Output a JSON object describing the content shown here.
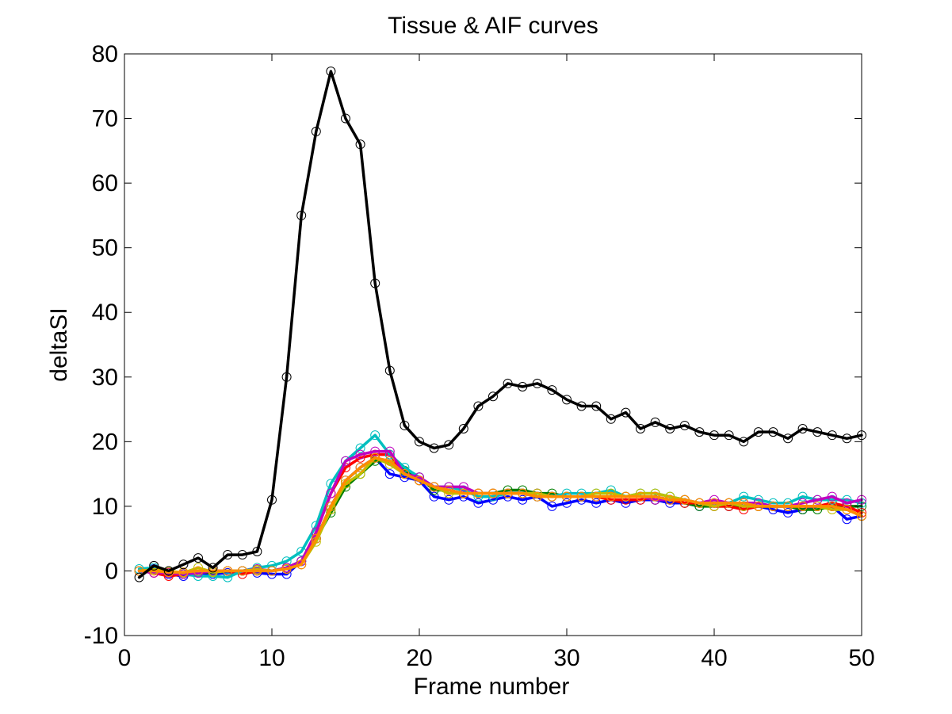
{
  "chart_data": {
    "type": "line",
    "title": "Tissue & AIF curves",
    "xlabel": "Frame number",
    "ylabel": "deltaSI",
    "xlim": [
      0,
      50
    ],
    "ylim": [
      -10,
      80
    ],
    "xticks": [
      0,
      10,
      20,
      30,
      40,
      50
    ],
    "yticks": [
      -10,
      0,
      10,
      20,
      30,
      40,
      50,
      60,
      70,
      80
    ],
    "grid": false,
    "legend": "none",
    "marker": "circle",
    "series": [
      {
        "color": "#0000ff",
        "x": [
          1,
          2,
          3,
          4,
          5,
          6,
          7,
          8,
          9,
          10,
          11,
          12,
          13,
          14,
          15,
          16,
          17,
          18,
          19,
          20,
          21,
          22,
          23,
          24,
          25,
          26,
          27,
          28,
          29,
          30,
          31,
          32,
          33,
          34,
          35,
          36,
          37,
          38,
          39,
          40,
          41,
          42,
          43,
          44,
          45,
          46,
          47,
          48,
          49,
          50
        ],
        "y": [
          0,
          0.3,
          -0.5,
          -0.8,
          -0.3,
          -0.5,
          -0.3,
          0,
          -0.3,
          -0.5,
          -0.5,
          1.5,
          5,
          10,
          14,
          16,
          17.5,
          15,
          14.5,
          14,
          11.5,
          11,
          11.5,
          10.5,
          11,
          11.5,
          11,
          11.5,
          10,
          10.5,
          11,
          10.5,
          11,
          10.5,
          11,
          11,
          10.5,
          10.5,
          10,
          10.5,
          10,
          10.5,
          10,
          9.5,
          9,
          9.5,
          10,
          10,
          8,
          8.5
        ]
      },
      {
        "color": "#007f00",
        "x": [
          1,
          2,
          3,
          4,
          5,
          6,
          7,
          8,
          9,
          10,
          11,
          12,
          13,
          14,
          15,
          16,
          17,
          18,
          19,
          20,
          21,
          22,
          23,
          24,
          25,
          26,
          27,
          28,
          29,
          30,
          31,
          32,
          33,
          34,
          35,
          36,
          37,
          38,
          39,
          40,
          41,
          42,
          43,
          44,
          45,
          46,
          47,
          48,
          49,
          50
        ],
        "y": [
          0,
          0.2,
          -0.3,
          -0.5,
          -0.2,
          -0.2,
          0,
          0,
          0.2,
          0,
          0.5,
          1.5,
          5,
          9,
          13,
          15,
          17,
          17,
          15.5,
          14.5,
          12.5,
          12.5,
          12,
          12,
          12,
          12.5,
          12.5,
          12,
          12,
          11.5,
          11.5,
          11.5,
          11.5,
          11.5,
          11.5,
          11,
          11,
          10.5,
          10,
          10,
          10,
          10,
          10,
          10,
          10,
          9.5,
          9.5,
          10,
          10,
          10
        ]
      },
      {
        "color": "#ff0000",
        "x": [
          1,
          2,
          3,
          4,
          5,
          6,
          7,
          8,
          9,
          10,
          11,
          12,
          13,
          14,
          15,
          16,
          17,
          18,
          19,
          20,
          21,
          22,
          23,
          24,
          25,
          26,
          27,
          28,
          29,
          30,
          31,
          32,
          33,
          34,
          35,
          36,
          37,
          38,
          39,
          40,
          41,
          42,
          43,
          44,
          45,
          46,
          47,
          48,
          49,
          50
        ],
        "y": [
          0,
          -0.3,
          -0.8,
          -0.5,
          -0.3,
          0,
          0,
          -0.5,
          0,
          0,
          0.5,
          1,
          6,
          12,
          16,
          17.5,
          18,
          18,
          15,
          14,
          13,
          12.5,
          12,
          12,
          12,
          12,
          12,
          11.5,
          11.5,
          11.5,
          11.5,
          11.5,
          11,
          11,
          11,
          11.5,
          11,
          10.5,
          10.5,
          10,
          10,
          9.5,
          10,
          10,
          10,
          10,
          10,
          10.5,
          10,
          9
        ]
      },
      {
        "color": "#00bfbf",
        "x": [
          1,
          2,
          3,
          4,
          5,
          6,
          7,
          8,
          9,
          10,
          11,
          12,
          13,
          14,
          15,
          16,
          17,
          18,
          19,
          20,
          21,
          22,
          23,
          24,
          25,
          26,
          27,
          28,
          29,
          30,
          31,
          32,
          33,
          34,
          35,
          36,
          37,
          38,
          39,
          40,
          41,
          42,
          43,
          44,
          45,
          46,
          47,
          48,
          49,
          50
        ],
        "y": [
          0.3,
          0.5,
          0,
          -0.5,
          -0.8,
          -0.8,
          -1,
          0,
          0.5,
          0.8,
          1.5,
          3,
          7,
          13.5,
          17,
          19,
          21,
          18,
          16,
          14.5,
          13,
          13,
          12.5,
          11.5,
          11.5,
          12,
          12,
          11.5,
          11.5,
          12,
          12,
          12,
          12.5,
          11.5,
          12,
          12,
          11.5,
          11,
          10.5,
          10.5,
          10.5,
          11.5,
          11,
          10.5,
          10.5,
          11.5,
          11,
          11,
          11,
          10.5
        ]
      },
      {
        "color": "#bf00bf",
        "x": [
          1,
          2,
          3,
          4,
          5,
          6,
          7,
          8,
          9,
          10,
          11,
          12,
          13,
          14,
          15,
          16,
          17,
          18,
          19,
          20,
          21,
          22,
          23,
          24,
          25,
          26,
          27,
          28,
          29,
          30,
          31,
          32,
          33,
          34,
          35,
          36,
          37,
          38,
          39,
          40,
          41,
          42,
          43,
          44,
          45,
          46,
          47,
          48,
          49,
          50
        ],
        "y": [
          0,
          -0.3,
          -0.3,
          -0.5,
          -0.3,
          0,
          0,
          0,
          0.3,
          0,
          0.5,
          1.5,
          6,
          12,
          17,
          18,
          18.5,
          18.5,
          15,
          14.5,
          13,
          13,
          13,
          12,
          12,
          12,
          12,
          12,
          11.5,
          11.5,
          11.5,
          11.5,
          11.5,
          11.5,
          11.5,
          11,
          11,
          11,
          10.5,
          11,
          10.5,
          10.5,
          10.5,
          10,
          10,
          10.5,
          11,
          11.5,
          10.5,
          11
        ]
      },
      {
        "color": "#bfbf00",
        "x": [
          1,
          2,
          3,
          4,
          5,
          6,
          7,
          8,
          9,
          10,
          11,
          12,
          13,
          14,
          15,
          16,
          17,
          18,
          19,
          20,
          21,
          22,
          23,
          24,
          25,
          26,
          27,
          28,
          29,
          30,
          31,
          32,
          33,
          34,
          35,
          36,
          37,
          38,
          39,
          40,
          41,
          42,
          43,
          44,
          45,
          46,
          47,
          48,
          49,
          50
        ],
        "y": [
          0,
          0.2,
          0,
          -0.3,
          0.5,
          -0.2,
          0,
          0,
          0.2,
          0,
          0.3,
          1,
          4.5,
          9.5,
          13.5,
          15,
          17.5,
          16.5,
          15,
          14,
          13,
          12,
          12,
          12,
          12,
          12,
          12,
          12,
          11.5,
          11.5,
          11.5,
          12,
          12,
          11.5,
          12,
          12,
          11.5,
          11,
          10.5,
          10,
          10.5,
          10,
          10,
          10,
          10,
          10,
          10,
          9.5,
          9.5,
          8.5
        ]
      },
      {
        "color": "#ff8c00",
        "x": [
          1,
          2,
          3,
          4,
          5,
          6,
          7,
          8,
          9,
          10,
          11,
          12,
          13,
          14,
          15,
          16,
          17,
          18,
          19,
          20,
          21,
          22,
          23,
          24,
          25,
          26,
          27,
          28,
          29,
          30,
          31,
          32,
          33,
          34,
          35,
          36,
          37,
          38,
          39,
          40,
          41,
          42,
          43,
          44,
          45,
          46,
          47,
          48,
          49,
          50
        ],
        "y": [
          0,
          0,
          -0.2,
          -0.2,
          0,
          0,
          0,
          0,
          0,
          0,
          0.3,
          1,
          5,
          10,
          14,
          16,
          17.5,
          17,
          15,
          14,
          13,
          12.5,
          12,
          12,
          12,
          12,
          12,
          11.5,
          11.5,
          11.5,
          11.5,
          11.5,
          11.5,
          11.5,
          11.5,
          11.5,
          11,
          11,
          10.5,
          10.5,
          10.5,
          10.5,
          10,
          10,
          10,
          10,
          10,
          10,
          9.5,
          8.5
        ]
      },
      {
        "color": "#000000",
        "x": [
          1,
          2,
          3,
          4,
          5,
          6,
          7,
          8,
          9,
          10,
          11,
          12,
          13,
          14,
          15,
          16,
          17,
          18,
          19,
          20,
          21,
          22,
          23,
          24,
          25,
          26,
          27,
          28,
          29,
          30,
          31,
          32,
          33,
          34,
          35,
          36,
          37,
          38,
          39,
          40,
          41,
          42,
          43,
          44,
          45,
          46,
          47,
          48,
          49,
          50
        ],
        "y": [
          -1,
          0.8,
          0,
          1,
          2,
          0.5,
          2.5,
          2.5,
          3,
          11,
          30,
          55,
          68,
          77.3,
          70,
          66,
          44.5,
          31,
          22.5,
          20,
          19,
          19.5,
          22,
          25.5,
          27,
          29,
          28.5,
          29,
          28,
          26.5,
          25.5,
          25.5,
          23.5,
          24.5,
          22,
          23,
          22,
          22.5,
          21.5,
          21,
          21,
          20,
          21.5,
          21.5,
          20.5,
          22,
          21.5,
          21,
          20.5,
          21
        ]
      }
    ]
  }
}
